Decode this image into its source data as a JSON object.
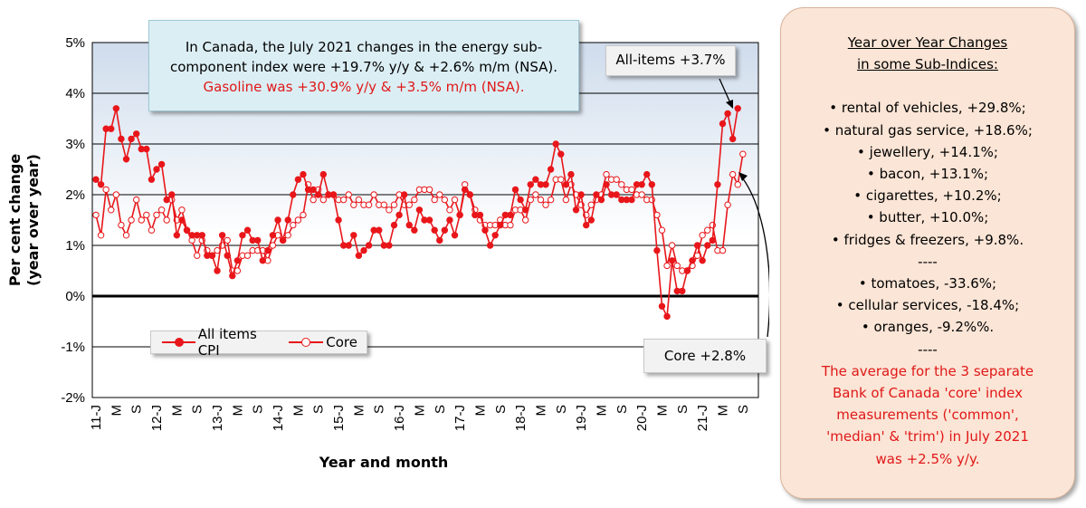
{
  "chart_data": {
    "type": "line",
    "ylabel_line1": "Per cent change",
    "ylabel_line2": "(year over year)",
    "xlabel": "Year and month",
    "ylim": [
      -2,
      5
    ],
    "y_ticks": [
      "-2%",
      "-1%",
      "0%",
      "1%",
      "2%",
      "3%",
      "4%",
      "5%"
    ],
    "x_ticks": [
      {
        "i": 0,
        "label": "11-J"
      },
      {
        "i": 4,
        "label": "M"
      },
      {
        "i": 8,
        "label": "S"
      },
      {
        "i": 12,
        "label": "12-J"
      },
      {
        "i": 16,
        "label": "M"
      },
      {
        "i": 20,
        "label": "S"
      },
      {
        "i": 24,
        "label": "13-J"
      },
      {
        "i": 28,
        "label": "M"
      },
      {
        "i": 32,
        "label": "S"
      },
      {
        "i": 36,
        "label": "14-J"
      },
      {
        "i": 40,
        "label": "M"
      },
      {
        "i": 44,
        "label": "S"
      },
      {
        "i": 48,
        "label": "15-J"
      },
      {
        "i": 52,
        "label": "M"
      },
      {
        "i": 56,
        "label": "S"
      },
      {
        "i": 60,
        "label": "16-J"
      },
      {
        "i": 64,
        "label": "M"
      },
      {
        "i": 68,
        "label": "S"
      },
      {
        "i": 72,
        "label": "17-J"
      },
      {
        "i": 76,
        "label": "M"
      },
      {
        "i": 80,
        "label": "S"
      },
      {
        "i": 84,
        "label": "18-J"
      },
      {
        "i": 88,
        "label": "M"
      },
      {
        "i": 92,
        "label": "S"
      },
      {
        "i": 96,
        "label": "19-J"
      },
      {
        "i": 100,
        "label": "M"
      },
      {
        "i": 104,
        "label": "S"
      },
      {
        "i": 108,
        "label": "20-J"
      },
      {
        "i": 112,
        "label": "M"
      },
      {
        "i": 116,
        "label": "S"
      },
      {
        "i": 120,
        "label": "21-J"
      },
      {
        "i": 124,
        "label": "M"
      },
      {
        "i": 128,
        "label": "S"
      }
    ],
    "x_count": 131,
    "series": [
      {
        "name": "All items CPI",
        "color": "#e8161a",
        "marker": "filled",
        "values": [
          2.3,
          2.2,
          3.3,
          3.3,
          3.7,
          3.1,
          2.7,
          3.1,
          3.2,
          2.9,
          2.9,
          2.3,
          2.5,
          2.6,
          1.9,
          2.0,
          1.2,
          1.5,
          1.3,
          1.2,
          1.2,
          1.2,
          0.8,
          0.8,
          0.5,
          1.2,
          0.8,
          0.4,
          0.7,
          1.2,
          1.3,
          1.1,
          1.1,
          0.7,
          0.9,
          1.2,
          1.5,
          1.1,
          1.5,
          2.0,
          2.3,
          2.4,
          2.1,
          2.1,
          2.0,
          2.4,
          2.0,
          2.0,
          1.5,
          1.0,
          1.0,
          1.2,
          0.8,
          0.9,
          1.0,
          1.3,
          1.3,
          1.0,
          1.0,
          1.4,
          1.6,
          2.0,
          1.4,
          1.3,
          1.7,
          1.5,
          1.5,
          1.3,
          1.1,
          1.3,
          1.5,
          1.2,
          1.6,
          2.1,
          2.0,
          1.6,
          1.6,
          1.3,
          1.0,
          1.2,
          1.4,
          1.6,
          1.6,
          2.1,
          1.9,
          1.7,
          2.2,
          2.3,
          2.2,
          2.2,
          2.5,
          3.0,
          2.8,
          2.2,
          2.4,
          1.7,
          2.0,
          1.4,
          1.5,
          2.0,
          1.9,
          2.2,
          2.0,
          2.0,
          1.9,
          1.9,
          1.9,
          2.2,
          2.2,
          2.4,
          2.2,
          0.9,
          -0.2,
          -0.4,
          0.7,
          0.1,
          0.1,
          0.5,
          0.7,
          1.0,
          0.7,
          1.0,
          1.1,
          2.2,
          3.4,
          3.6,
          3.1,
          3.7
        ]
      },
      {
        "name": "Core",
        "color": "#e8161a",
        "marker": "hollow",
        "values": [
          1.6,
          1.2,
          2.1,
          1.7,
          2.0,
          1.4,
          1.2,
          1.5,
          1.9,
          1.5,
          1.6,
          1.3,
          1.6,
          1.7,
          1.5,
          1.9,
          1.5,
          1.7,
          1.3,
          1.1,
          0.8,
          1.1,
          0.9,
          0.8,
          0.9,
          1.0,
          1.1,
          0.5,
          0.5,
          0.8,
          0.8,
          0.9,
          0.9,
          0.9,
          0.7,
          1.0,
          1.2,
          1.1,
          1.2,
          1.4,
          1.5,
          1.6,
          2.2,
          1.9,
          2.1,
          1.9,
          2.0,
          2.0,
          1.9,
          1.9,
          2.0,
          1.8,
          1.9,
          1.8,
          1.8,
          2.0,
          1.8,
          1.8,
          1.7,
          1.8,
          2.0,
          1.8,
          1.8,
          1.9,
          2.1,
          2.1,
          2.1,
          1.9,
          2.0,
          1.9,
          1.7,
          1.9,
          1.6,
          2.2,
          2.0,
          1.7,
          1.5,
          1.4,
          1.4,
          1.4,
          1.5,
          1.4,
          1.4,
          1.7,
          1.7,
          1.5,
          1.9,
          2.0,
          1.9,
          1.8,
          1.9,
          2.3,
          2.3,
          1.9,
          2.2,
          2.0,
          1.8,
          1.6,
          1.8,
          1.9,
          2.0,
          2.4,
          2.3,
          2.3,
          2.2,
          2.1,
          2.1,
          2.0,
          2.0,
          1.9,
          1.9,
          1.6,
          1.3,
          0.6,
          1.0,
          0.6,
          0.5,
          0.5,
          0.6,
          0.8,
          1.2,
          1.3,
          1.4,
          0.9,
          0.9,
          1.8,
          2.4,
          2.2,
          2.8
        ]
      }
    ],
    "legend_position": "lower-left"
  },
  "annotations": {
    "info_line1": "In Canada, the July 2021 changes in the energy sub-",
    "info_line2": "component index were +19.7% y/y & +2.6% m/m (NSA).",
    "info_line3": "Gasoline was +30.9% y/y & +3.5% m/m (NSA).",
    "all_items_callout": "All-items +3.7%",
    "core_callout": "Core +2.8%"
  },
  "legend": {
    "all_items": "All items CPI",
    "core": "Core"
  },
  "side_panel": {
    "header_line1": "Year over Year Changes",
    "header_line2": "in some Sub-Indices:",
    "items_up": [
      "• rental of vehicles, +29.8%;",
      "• natural gas service, +18.6%;",
      "• jewellery, +14.1%;",
      "• bacon, +13.1%;",
      "• cigarettes, +10.2%;",
      "• butter, +10.0%;",
      "• fridges & freezers, +9.8%."
    ],
    "separator": "----",
    "items_down": [
      "• tomatoes, -33.6%;",
      "• cellular services, -18.4%;",
      "• oranges, -9.2%%."
    ],
    "separator2": "----",
    "note_line1": "The average for the 3 separate",
    "note_line2": "Bank of Canada 'core' index",
    "note_line3": "measurements ('common',",
    "note_line4": "'median' & 'trim') in July 2021",
    "note_line5": "was +2.5% y/y."
  }
}
